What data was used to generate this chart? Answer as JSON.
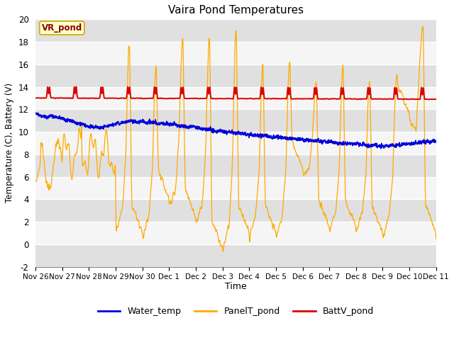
{
  "title": "Vaira Pond Temperatures",
  "ylabel": "Temperature (C), Battery (V)",
  "xlabel": "Time",
  "legend_label": "VR_pond",
  "ylim": [
    -2,
    20
  ],
  "yticks": [
    -2,
    0,
    2,
    4,
    6,
    8,
    10,
    12,
    14,
    16,
    18,
    20
  ],
  "xtick_labels": [
    "Nov 26",
    "Nov 27",
    "Nov 28",
    "Nov 29",
    "Nov 30",
    "Dec 1",
    "Dec 2",
    "Dec 3",
    "Dec 4",
    "Dec 5",
    "Dec 6",
    "Dec 7",
    "Dec 8",
    "Dec 9",
    "Dec 10",
    "Dec 11"
  ],
  "bg_color": "#ebebeb",
  "plot_bg": "#f5f5f5",
  "water_color": "#0000dd",
  "panel_color": "#ffaa00",
  "batt_color": "#dd0000",
  "n_points": 2400,
  "figsize": [
    6.4,
    4.8
  ],
  "dpi": 100
}
